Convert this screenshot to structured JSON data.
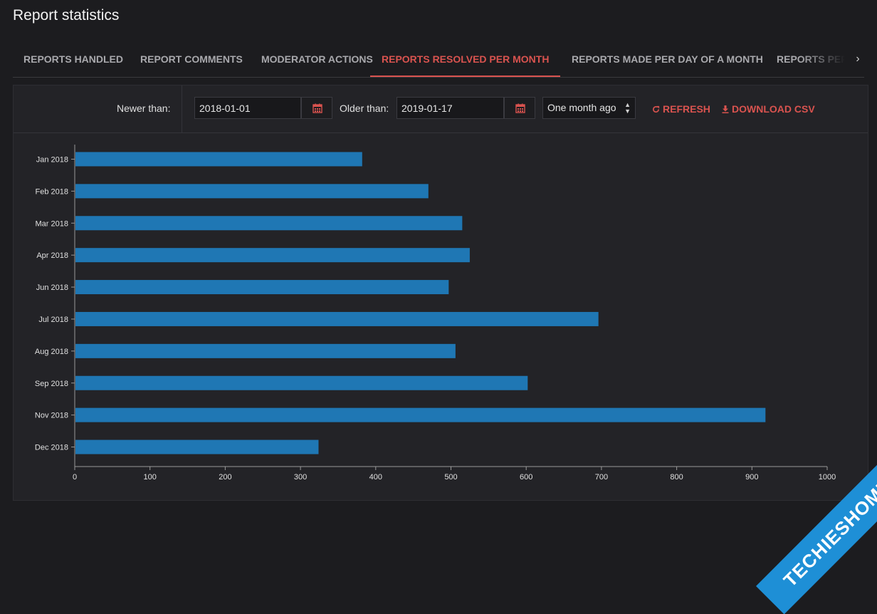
{
  "page": {
    "title": "Report statistics"
  },
  "tabs": [
    {
      "label": "REPORTS HANDLED"
    },
    {
      "label": "REPORT COMMENTS"
    },
    {
      "label": "MODERATOR ACTIONS"
    },
    {
      "label": "REPORTS RESOLVED PER MONTH",
      "active": true
    },
    {
      "label": "REPORTS MADE PER DAY OF A MONTH"
    },
    {
      "label": "REPORTS PER"
    }
  ],
  "filters": {
    "newer_label": "Newer than:",
    "newer_value": "2018-01-01",
    "older_label": "Older than:",
    "older_value": "2019-01-17",
    "range_select": "One month ago",
    "refresh_label": "REFRESH",
    "download_label": "DOWNLOAD CSV"
  },
  "colors": {
    "accent": "#d9534f",
    "bar": "#1f77b4",
    "background": "#1c1c1f",
    "panel": "#232327"
  },
  "icons": {
    "calendar": "calendar-icon",
    "refresh": "refresh-icon",
    "download": "download-icon",
    "next": "chevron-right-icon"
  },
  "watermark": {
    "text": "TECHIESHOME.COM"
  },
  "chart_data": {
    "type": "bar",
    "orientation": "horizontal",
    "categories": [
      "Jan 2018",
      "Feb 2018",
      "Mar 2018",
      "Apr 2018",
      "Jun 2018",
      "Jul 2018",
      "Aug 2018",
      "Sep 2018",
      "Nov 2018",
      "Dec 2018"
    ],
    "values": [
      382,
      470,
      515,
      525,
      497,
      696,
      506,
      602,
      918,
      324
    ],
    "xlim": [
      0,
      1000
    ],
    "xticks": [
      0,
      100,
      200,
      300,
      400,
      500,
      600,
      700,
      800,
      900,
      1000
    ],
    "title": "",
    "xlabel": "",
    "ylabel": "",
    "grid": false,
    "legend": "none"
  }
}
